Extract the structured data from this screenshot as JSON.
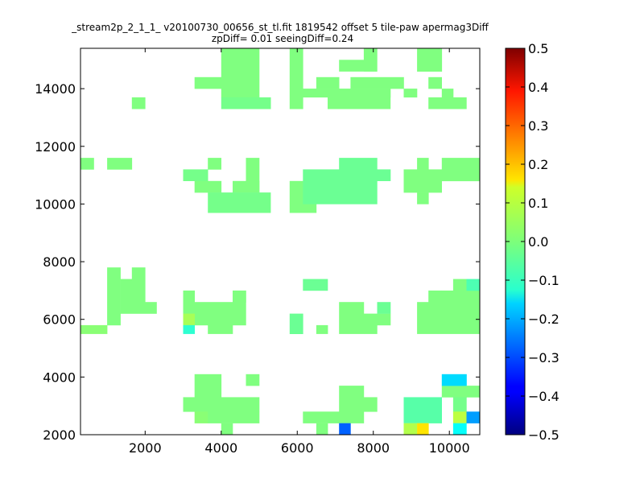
{
  "chart_data": {
    "type": "heatmap",
    "title_line1": "_stream2p_2_1_1_ v20100730_00656_st_tl.fit 1819542 offset 5 tile-paw apermag3Diff",
    "title_line2": "zpDiff= 0.01 seeingDiff=0.24",
    "xlabel": "",
    "ylabel": "",
    "xlim": [
      300,
      10800
    ],
    "ylim": [
      2000,
      15400
    ],
    "x_ticks": [
      2000,
      4000,
      6000,
      8000,
      10000
    ],
    "y_ticks": [
      2000,
      4000,
      6000,
      8000,
      10000,
      12000,
      14000
    ],
    "cell_size": [
      327,
      446
    ],
    "colorbar": {
      "colormap": "jet",
      "range": [
        -0.5,
        0.5
      ],
      "ticks": [
        "0.5",
        "0.4",
        "0.3",
        "0.2",
        "0.1",
        "0.0",
        "−0.1",
        "−0.2",
        "−0.3",
        "−0.4",
        "−0.5"
      ],
      "tick_values": [
        0.5,
        0.4,
        0.3,
        0.2,
        0.1,
        0.0,
        -0.1,
        -0.2,
        -0.3,
        -0.4,
        -0.5
      ]
    },
    "blocks": [
      {
        "x0": 4000,
        "x1": 5000,
        "y0": 13700,
        "y1": 15400,
        "v": 0.0
      },
      {
        "x0": 3300,
        "x1": 4000,
        "y0": 14000,
        "y1": 14400,
        "v": 0.0
      },
      {
        "x0": 4000,
        "x1": 5300,
        "y0": 13300,
        "y1": 13700,
        "v": -0.01
      },
      {
        "x0": 1650,
        "x1": 2000,
        "y0": 13300,
        "y1": 13700,
        "v": 0.0
      },
      {
        "x0": 5800,
        "x1": 6150,
        "y0": 13300,
        "y1": 15400,
        "v": 0.0
      },
      {
        "x0": 7100,
        "x1": 7750,
        "y0": 14600,
        "y1": 15000,
        "v": 0.0
      },
      {
        "x0": 7750,
        "x1": 8100,
        "y0": 14600,
        "y1": 15400,
        "v": 0.0
      },
      {
        "x0": 6150,
        "x1": 7100,
        "y0": 13700,
        "y1": 14000,
        "v": 0.0
      },
      {
        "x0": 6800,
        "x1": 8450,
        "y0": 13300,
        "y1": 13700,
        "v": 0.0
      },
      {
        "x0": 7100,
        "x1": 8450,
        "y0": 13700,
        "y1": 14000,
        "v": 0.0
      },
      {
        "x0": 6500,
        "x1": 7100,
        "y0": 14000,
        "y1": 14400,
        "v": 0.0
      },
      {
        "x0": 7400,
        "x1": 8800,
        "y0": 14000,
        "y1": 14400,
        "v": 0.0
      },
      {
        "x0": 9150,
        "x1": 9800,
        "y0": 14600,
        "y1": 15400,
        "v": 0.0
      },
      {
        "x0": 8800,
        "x1": 9150,
        "y0": 13700,
        "y1": 14000,
        "v": 0.0
      },
      {
        "x0": 9450,
        "x1": 9800,
        "y0": 14000,
        "y1": 14400,
        "v": 0.0
      },
      {
        "x0": 9800,
        "x1": 10100,
        "y0": 13700,
        "y1": 14000,
        "v": 0.0
      },
      {
        "x0": 9450,
        "x1": 10450,
        "y0": 13300,
        "y1": 13700,
        "v": 0.0
      },
      {
        "x0": 300,
        "x1": 650,
        "y0": 11200,
        "y1": 11600,
        "v": 0.0
      },
      {
        "x0": 1000,
        "x1": 1650,
        "y0": 11200,
        "y1": 11600,
        "v": 0.0
      },
      {
        "x0": 3000,
        "x1": 3650,
        "y0": 10800,
        "y1": 11200,
        "v": -0.01
      },
      {
        "x0": 3650,
        "x1": 4000,
        "y0": 11200,
        "y1": 11600,
        "v": 0.0
      },
      {
        "x0": 3300,
        "x1": 4000,
        "y0": 10400,
        "y1": 10800,
        "v": 0.0
      },
      {
        "x0": 4650,
        "x1": 5000,
        "y0": 10800,
        "y1": 11600,
        "v": 0.0
      },
      {
        "x0": 4300,
        "x1": 5000,
        "y0": 10400,
        "y1": 10800,
        "v": 0.0
      },
      {
        "x0": 3650,
        "x1": 5300,
        "y0": 9700,
        "y1": 10400,
        "v": -0.01
      },
      {
        "x0": 5800,
        "x1": 6500,
        "y0": 9700,
        "y1": 10800,
        "v": 0.0
      },
      {
        "x0": 6150,
        "x1": 8100,
        "y0": 10000,
        "y1": 11200,
        "v": -0.02
      },
      {
        "x0": 7100,
        "x1": 8100,
        "y0": 11200,
        "y1": 11600,
        "v": -0.02
      },
      {
        "x0": 8100,
        "x1": 8450,
        "y0": 10800,
        "y1": 11200,
        "v": -0.02
      },
      {
        "x0": 8800,
        "x1": 9800,
        "y0": 10400,
        "y1": 11200,
        "v": 0.0
      },
      {
        "x0": 9150,
        "x1": 9450,
        "y0": 11200,
        "y1": 11600,
        "v": 0.0
      },
      {
        "x0": 9150,
        "x1": 9450,
        "y0": 10000,
        "y1": 10400,
        "v": 0.0
      },
      {
        "x0": 9800,
        "x1": 10800,
        "y0": 10800,
        "y1": 11600,
        "v": 0.0
      },
      {
        "x0": 1000,
        "x1": 1350,
        "y0": 6600,
        "y1": 7800,
        "v": 0.0
      },
      {
        "x0": 1350,
        "x1": 1650,
        "y0": 6600,
        "y1": 7400,
        "v": 0.0
      },
      {
        "x0": 1650,
        "x1": 2000,
        "y0": 6600,
        "y1": 7800,
        "v": 0.0
      },
      {
        "x0": 1350,
        "x1": 2300,
        "y0": 6200,
        "y1": 6600,
        "v": 0.0
      },
      {
        "x0": 1000,
        "x1": 1350,
        "y0": 5800,
        "y1": 6600,
        "v": 0.0
      },
      {
        "x0": 300,
        "x1": 1000,
        "y0": 5500,
        "y1": 5800,
        "v": 0.01
      },
      {
        "x0": 3000,
        "x1": 3300,
        "y0": 6600,
        "y1": 7000,
        "v": 0.0
      },
      {
        "x0": 3000,
        "x1": 4650,
        "y0": 5800,
        "y1": 6600,
        "v": 0.0
      },
      {
        "x0": 3000,
        "x1": 3300,
        "y0": 5800,
        "y1": 6200,
        "v": 0.04
      },
      {
        "x0": 3000,
        "x1": 3300,
        "y0": 5500,
        "y1": 5800,
        "v": -0.08
      },
      {
        "x0": 3650,
        "x1": 4000,
        "y0": 5500,
        "y1": 5800,
        "v": 0.0
      },
      {
        "x0": 4000,
        "x1": 4300,
        "y0": 5500,
        "y1": 5800,
        "v": 0.0
      },
      {
        "x0": 4300,
        "x1": 4650,
        "y0": 6600,
        "y1": 7000,
        "v": 0.0
      },
      {
        "x0": 6150,
        "x1": 6800,
        "y0": 7000,
        "y1": 7400,
        "v": -0.02
      },
      {
        "x0": 5800,
        "x1": 6150,
        "y0": 5500,
        "y1": 6200,
        "v": -0.02
      },
      {
        "x0": 6500,
        "x1": 6800,
        "y0": 5500,
        "y1": 5800,
        "v": 0.0
      },
      {
        "x0": 7100,
        "x1": 7750,
        "y0": 5500,
        "y1": 6600,
        "v": 0.0
      },
      {
        "x0": 7400,
        "x1": 8450,
        "y0": 5800,
        "y1": 6200,
        "v": 0.0
      },
      {
        "x0": 7750,
        "x1": 8100,
        "y0": 5500,
        "y1": 5800,
        "v": 0.0
      },
      {
        "x0": 8100,
        "x1": 8450,
        "y0": 6200,
        "y1": 6600,
        "v": -0.02
      },
      {
        "x0": 9150,
        "x1": 10800,
        "y0": 5500,
        "y1": 6600,
        "v": 0.0
      },
      {
        "x0": 9800,
        "x1": 10800,
        "y0": 6600,
        "y1": 7000,
        "v": 0.0
      },
      {
        "x0": 9450,
        "x1": 9800,
        "y0": 6600,
        "y1": 7000,
        "v": 0.0
      },
      {
        "x0": 10100,
        "x1": 10450,
        "y0": 7000,
        "y1": 7400,
        "v": 0.0
      },
      {
        "x0": 10450,
        "x1": 10800,
        "y0": 7000,
        "y1": 7400,
        "v": -0.05
      },
      {
        "x0": 3300,
        "x1": 4000,
        "y0": 3300,
        "y1": 4100,
        "v": 0.0
      },
      {
        "x0": 3000,
        "x1": 5000,
        "y0": 2800,
        "y1": 3300,
        "v": 0.0
      },
      {
        "x0": 3300,
        "x1": 3650,
        "y0": 2400,
        "y1": 2800,
        "v": 0.01
      },
      {
        "x0": 3650,
        "x1": 5000,
        "y0": 2400,
        "y1": 2800,
        "v": 0.0
      },
      {
        "x0": 4000,
        "x1": 4300,
        "y0": 2000,
        "y1": 2400,
        "v": 0.0
      },
      {
        "x0": 4650,
        "x1": 5000,
        "y0": 3700,
        "y1": 4100,
        "v": 0.0
      },
      {
        "x0": 7100,
        "x1": 7750,
        "y0": 2800,
        "y1": 3700,
        "v": 0.0
      },
      {
        "x0": 7750,
        "x1": 8100,
        "y0": 2800,
        "y1": 3300,
        "v": 0.0
      },
      {
        "x0": 6150,
        "x1": 7750,
        "y0": 2400,
        "y1": 2800,
        "v": 0.0
      },
      {
        "x0": 6500,
        "x1": 6800,
        "y0": 2000,
        "y1": 2400,
        "v": 0.0
      },
      {
        "x0": 7100,
        "x1": 7400,
        "y0": 2000,
        "y1": 2400,
        "v": -0.28
      },
      {
        "x0": 8800,
        "x1": 9800,
        "y0": 2400,
        "y1": 3300,
        "v": -0.04
      },
      {
        "x0": 8800,
        "x1": 9150,
        "y0": 2000,
        "y1": 2400,
        "v": 0.05
      },
      {
        "x0": 9150,
        "x1": 9450,
        "y0": 2000,
        "y1": 2400,
        "v": 0.15
      },
      {
        "x0": 9800,
        "x1": 10450,
        "y0": 3300,
        "y1": 3700,
        "v": 0.0
      },
      {
        "x0": 9800,
        "x1": 10450,
        "y0": 3700,
        "y1": 4100,
        "v": -0.16
      },
      {
        "x0": 10100,
        "x1": 10450,
        "y0": 2800,
        "y1": 3300,
        "v": -0.01
      },
      {
        "x0": 10450,
        "x1": 10800,
        "y0": 3300,
        "y1": 3700,
        "v": 0.0
      },
      {
        "x0": 10100,
        "x1": 10450,
        "y0": 2400,
        "y1": 2800,
        "v": 0.06
      },
      {
        "x0": 10450,
        "x1": 10800,
        "y0": 2400,
        "y1": 2800,
        "v": -0.22
      },
      {
        "x0": 10100,
        "x1": 10450,
        "y0": 2000,
        "y1": 2400,
        "v": -0.12
      }
    ]
  }
}
